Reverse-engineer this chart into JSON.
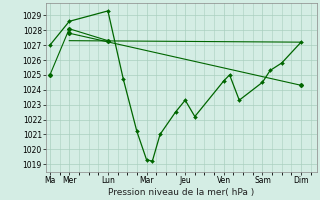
{
  "xlabel": "Pression niveau de la mer( hPa )",
  "background_color": "#d4ede4",
  "grid_color": "#aacfbf",
  "line_color": "#006600",
  "ylim": [
    1018.5,
    1029.8
  ],
  "yticks": [
    1019,
    1020,
    1021,
    1022,
    1023,
    1024,
    1025,
    1026,
    1027,
    1028,
    1029
  ],
  "x_labels": [
    "Ma",
    "Mer",
    "Lun",
    "Mar",
    "Jeu",
    "Ven",
    "Sam",
    "Dim"
  ],
  "x_positions": [
    0,
    1,
    3,
    5,
    7,
    9,
    11,
    13
  ],
  "xlim": [
    -0.2,
    13.8
  ],
  "series1": {
    "x": [
      0,
      1,
      3,
      3.8,
      4.5,
      5.0,
      5.3,
      5.7,
      6.5,
      7.0,
      7.5,
      9,
      9.3,
      9.8,
      11,
      11.4,
      12,
      13
    ],
    "y": [
      1027.0,
      1028.6,
      1029.3,
      1024.7,
      1021.2,
      1019.3,
      1019.2,
      1021.0,
      1022.5,
      1023.3,
      1022.2,
      1024.6,
      1025.0,
      1023.3,
      1024.5,
      1025.3,
      1025.8,
      1027.2
    ]
  },
  "series_flat": {
    "x": [
      1.0,
      13.0
    ],
    "y": [
      1027.3,
      1027.2
    ]
  },
  "series_slope": {
    "x": [
      1.0,
      13.0
    ],
    "y": [
      1027.8,
      1024.3
    ]
  },
  "series_left_upper": {
    "x": [
      0,
      1,
      3
    ],
    "y": [
      1025.0,
      1028.1,
      1027.3
    ]
  },
  "series_left_lower": {
    "x": [
      1,
      3
    ],
    "y": [
      1027.3,
      1027.3
    ]
  }
}
